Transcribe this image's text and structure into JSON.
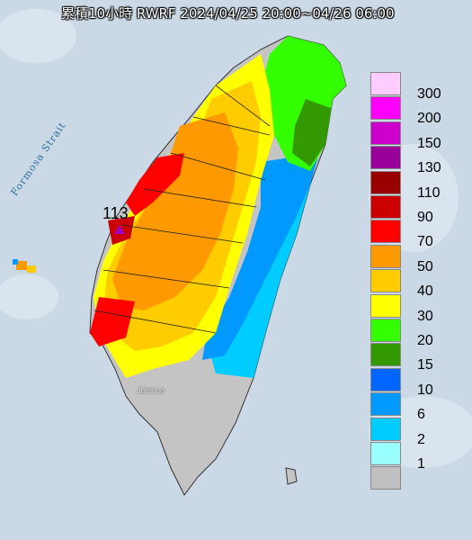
{
  "title": "累積10小時 RWRF 2024/04/25 20:00~04/26 06:00",
  "strait_label": "Formosa Strait",
  "max_value_label": "113",
  "place_label": "Jhishuo",
  "legend": [
    {
      "label": "300",
      "color": "#ffccff"
    },
    {
      "label": "200",
      "color": "#ff00ff"
    },
    {
      "label": "150",
      "color": "#cc00cc"
    },
    {
      "label": "130",
      "color": "#990099"
    },
    {
      "label": "110",
      "color": "#990000"
    },
    {
      "label": "90",
      "color": "#cc0000"
    },
    {
      "label": "70",
      "color": "#ff0000"
    },
    {
      "label": "50",
      "color": "#ff9900"
    },
    {
      "label": "40",
      "color": "#ffcc00"
    },
    {
      "label": "30",
      "color": "#ffff00"
    },
    {
      "label": "20",
      "color": "#33ff00"
    },
    {
      "label": "15",
      "color": "#339900"
    },
    {
      "label": "10",
      "color": "#0066ff"
    },
    {
      "label": "6",
      "color": "#0099ff"
    },
    {
      "label": "2",
      "color": "#00ccff"
    },
    {
      "label": "1",
      "color": "#99ffff"
    },
    {
      "label": "",
      "color": "#c0c0c0"
    }
  ]
}
